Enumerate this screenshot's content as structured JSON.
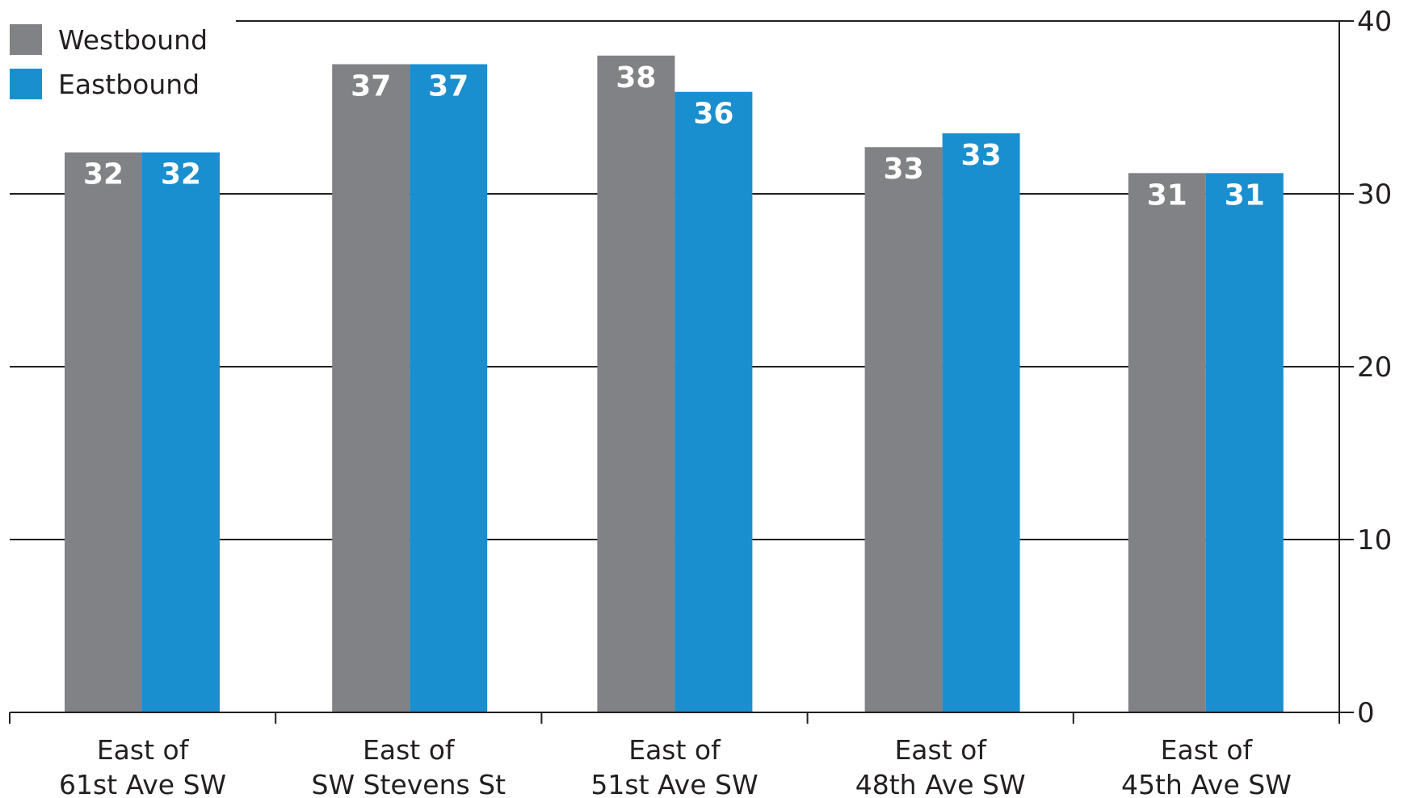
{
  "chart_data": {
    "type": "bar",
    "categories": [
      [
        "East of",
        "61st Ave SW"
      ],
      [
        "East of",
        "SW Stevens St"
      ],
      [
        "East of",
        "51st Ave SW"
      ],
      [
        "East of",
        "48th Ave SW"
      ],
      [
        "East of",
        "45th Ave SW"
      ]
    ],
    "series": [
      {
        "name": "Westbound",
        "color": "#808285",
        "values": [
          32.4,
          37.5,
          38.0,
          32.7,
          31.2
        ],
        "labels": [
          "32",
          "37",
          "38",
          "33",
          "31"
        ]
      },
      {
        "name": "Eastbound",
        "color": "#1a8fd0",
        "values": [
          32.4,
          37.5,
          35.9,
          33.5,
          31.2
        ],
        "labels": [
          "32",
          "37",
          "36",
          "33",
          "31"
        ]
      }
    ],
    "yticks": [
      "0",
      "10",
      "20",
      "30",
      "40"
    ],
    "ylim": [
      0,
      40
    ],
    "y_axis_position": "right",
    "grid": true,
    "legend_position": "top-left",
    "title": "",
    "xlabel": "",
    "ylabel": ""
  }
}
